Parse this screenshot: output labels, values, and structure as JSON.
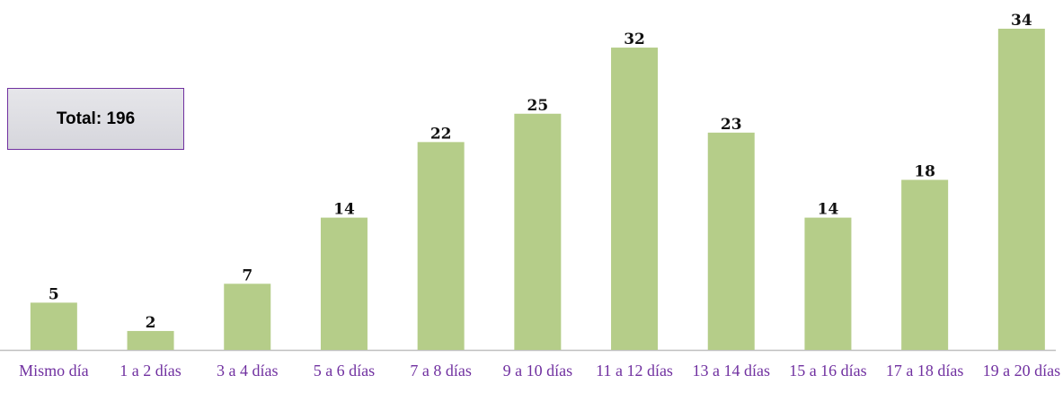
{
  "chart_data": {
    "type": "bar",
    "annotation": "Total: 196",
    "categories": [
      "Mismo día",
      "1 a 2 días",
      "3 a 4 días",
      "5 a 6 días",
      "7 a 8 días",
      "9 a 10 días",
      "11 a 12 días",
      "13 a 14 días",
      "15 a 16 días",
      "17 a 18 días",
      "19 a 20 días"
    ],
    "values": [
      5,
      2,
      7,
      14,
      22,
      25,
      32,
      23,
      14,
      18,
      34
    ],
    "color": "#b5cd89"
  }
}
